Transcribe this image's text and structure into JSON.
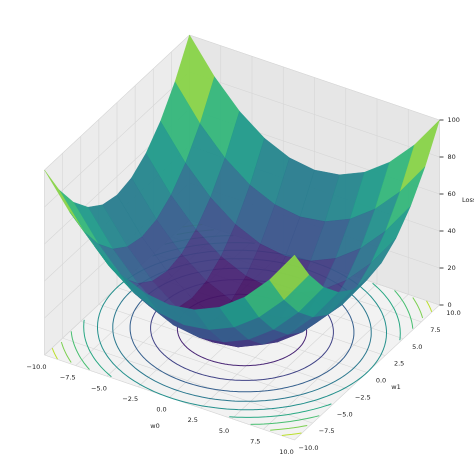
{
  "chart_data": {
    "type": "surface",
    "x": [
      -10,
      -8,
      -6,
      -4,
      -2,
      0,
      2,
      4,
      6,
      8,
      10
    ],
    "y": [
      -10,
      -8,
      -6,
      -4,
      -2,
      0,
      2,
      4,
      6,
      8,
      10
    ],
    "z": [
      [
        100,
        82,
        68,
        58,
        52,
        50,
        52,
        58,
        68,
        82,
        100
      ],
      [
        82,
        64,
        50,
        40,
        34,
        32,
        34,
        40,
        50,
        64,
        82
      ],
      [
        68,
        50,
        36,
        26,
        20,
        18,
        20,
        26,
        36,
        50,
        68
      ],
      [
        58,
        40,
        26,
        16,
        10,
        8,
        10,
        16,
        26,
        40,
        58
      ],
      [
        52,
        34,
        20,
        10,
        4,
        2,
        4,
        10,
        20,
        34,
        52
      ],
      [
        50,
        32,
        18,
        8,
        2,
        0,
        2,
        8,
        18,
        32,
        50
      ],
      [
        52,
        34,
        20,
        10,
        4,
        2,
        4,
        10,
        20,
        34,
        52
      ],
      [
        58,
        40,
        26,
        16,
        10,
        8,
        10,
        16,
        26,
        40,
        58
      ],
      [
        68,
        50,
        36,
        26,
        20,
        18,
        20,
        26,
        36,
        50,
        68
      ],
      [
        82,
        64,
        50,
        40,
        34,
        32,
        34,
        40,
        50,
        64,
        82
      ],
      [
        100,
        82,
        68,
        58,
        52,
        50,
        52,
        58,
        68,
        82,
        100
      ]
    ],
    "contour_levels": [
      10,
      20,
      30,
      40,
      50,
      60,
      70,
      80,
      90
    ],
    "colormap": "viridis",
    "xlabel": "w0",
    "ylabel": "w1",
    "zlabel": "Loss",
    "xlim": [
      -10,
      10
    ],
    "ylim": [
      -10,
      10
    ],
    "zlim": [
      0,
      100
    ],
    "xticks": [
      {
        "value": -10,
        "label": "−10.0"
      },
      {
        "value": -7.5,
        "label": "−7.5"
      },
      {
        "value": -5,
        "label": "−5.0"
      },
      {
        "value": -2.5,
        "label": "−2.5"
      },
      {
        "value": 0,
        "label": "0.0"
      },
      {
        "value": 2.5,
        "label": "2.5"
      },
      {
        "value": 5,
        "label": "5.0"
      },
      {
        "value": 7.5,
        "label": "7.5"
      },
      {
        "value": 10,
        "label": "10.0"
      }
    ],
    "yticks": [
      {
        "value": -10,
        "label": "−10.0"
      },
      {
        "value": -7.5,
        "label": "−7.5"
      },
      {
        "value": -5,
        "label": "−5.0"
      },
      {
        "value": -2.5,
        "label": "−2.5"
      },
      {
        "value": 0,
        "label": "0.0"
      },
      {
        "value": 2.5,
        "label": "2.5"
      },
      {
        "value": 5,
        "label": "5.0"
      },
      {
        "value": 7.5,
        "label": "7.5"
      },
      {
        "value": 10,
        "label": "10.0"
      }
    ],
    "zticks": [
      0,
      20,
      40,
      60,
      80,
      100
    ],
    "grid": true
  }
}
